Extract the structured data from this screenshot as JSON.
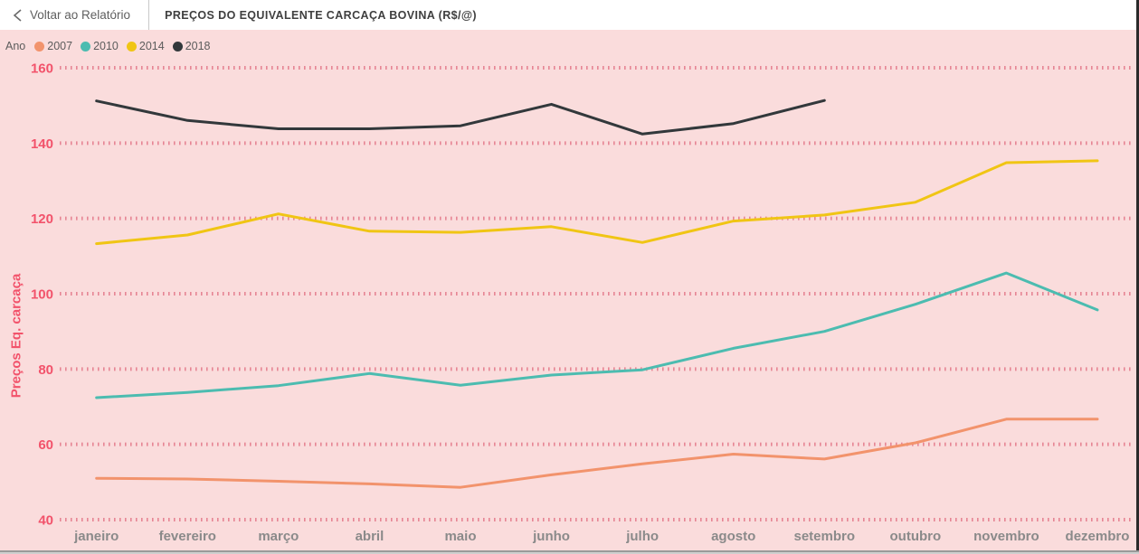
{
  "header": {
    "back_label": "Voltar ao Relatório",
    "title": "PREÇOS DO EQUIVALENTE CARCAÇA BOVINA (R$/@)"
  },
  "legend": {
    "title": "Ano"
  },
  "chart_data": {
    "type": "line",
    "title": "PREÇOS DO EQUIVALENTE CARCAÇA BOVINA (R$/@)",
    "xlabel": "",
    "ylabel": "Preços Eq. carcaça",
    "ylim": [
      40,
      160
    ],
    "yticks": [
      160,
      140,
      120,
      100,
      80,
      60,
      40
    ],
    "grid": "horizontal-dotted",
    "legend_position": "top-left",
    "categories": [
      "janeiro",
      "fevereiro",
      "março",
      "abril",
      "maio",
      "junho",
      "julho",
      "agosto",
      "setembro",
      "outubro",
      "novembro",
      "dezembro"
    ],
    "series": [
      {
        "name": "2007",
        "color": "#f2936c",
        "values": [
          51.0,
          50.8,
          50.2,
          49.5,
          48.6,
          51.9,
          54.8,
          57.4,
          56.1,
          60.4,
          66.7,
          66.7
        ]
      },
      {
        "name": "2010",
        "color": "#4cbcb0",
        "values": [
          72.4,
          73.8,
          75.6,
          78.8,
          75.7,
          78.4,
          79.8,
          85.5,
          90.0,
          97.2,
          105.5,
          95.7
        ]
      },
      {
        "name": "2014",
        "color": "#f0c514",
        "values": [
          113.3,
          115.6,
          121.2,
          116.6,
          116.3,
          117.8,
          113.6,
          119.3,
          120.9,
          124.3,
          134.8,
          135.3
        ]
      },
      {
        "name": "2018",
        "color": "#32383b",
        "values": [
          151.2,
          146.0,
          143.8,
          143.8,
          144.6,
          150.3,
          142.4,
          145.2,
          151.3,
          null,
          null,
          null
        ]
      }
    ]
  },
  "colors": {
    "chart_background": "#fadcdc",
    "gridline": "#e0697d",
    "y_tick_label": "#f2536b",
    "x_tick_label": "#8a8a8a",
    "legend_text": "#5c5c5c",
    "header_background": "#ffffff",
    "title_text": "#3f3f3f"
  }
}
